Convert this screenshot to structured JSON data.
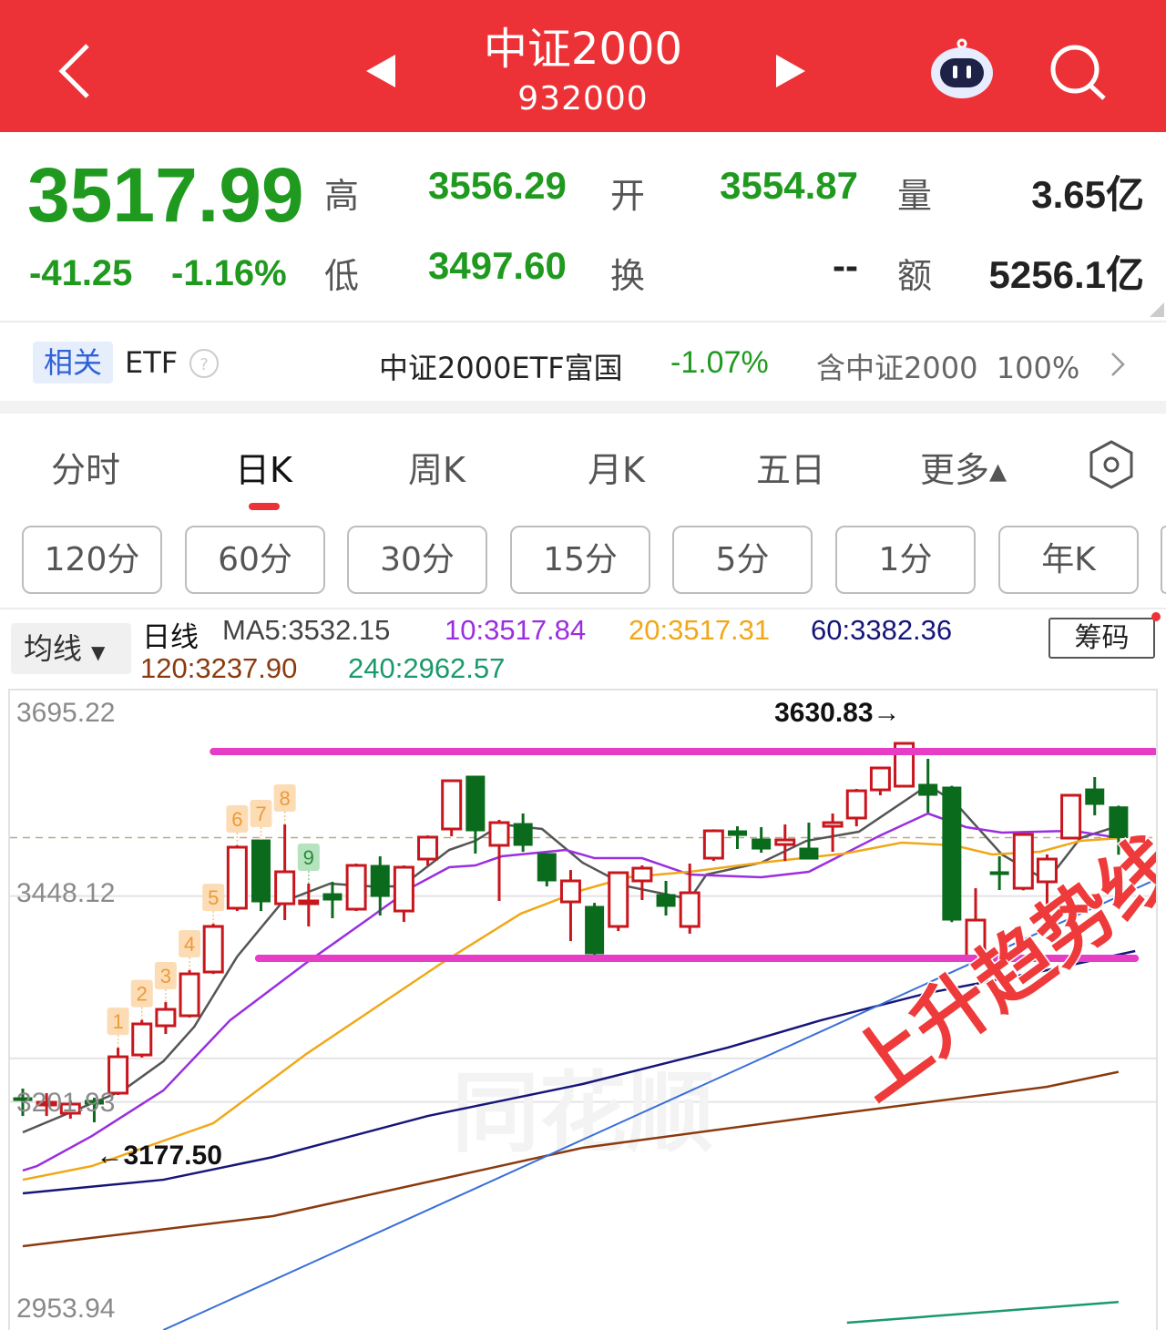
{
  "header": {
    "title": "中证2000",
    "code": "932000",
    "icons": [
      "back-chevron-icon",
      "prev-triangle-icon",
      "next-triangle-icon",
      "robot-assistant-icon",
      "search-icon"
    ]
  },
  "quote": {
    "price": "3517.99",
    "change": "-41.25",
    "change_pct": "-1.16%",
    "high_label": "高",
    "high": "3556.29",
    "low_label": "低",
    "low": "3497.60",
    "open_label": "开",
    "open": "3554.87",
    "turnover_label": "换",
    "turnover": "--",
    "volume_label": "量",
    "volume": "3.65亿",
    "amount_label": "额",
    "amount": "5256.1亿",
    "colors": {
      "down": "#1f9a1f",
      "header": "#ec3237"
    }
  },
  "etf": {
    "tag": "相关",
    "label": "ETF",
    "help_icon": "question-circle-icon",
    "name": "中证2000ETF富国",
    "change": "-1.07%",
    "holding": "含中证2000  100%",
    "chevron_icon": "chevron-right-icon"
  },
  "tabs": [
    {
      "label": "分时"
    },
    {
      "label": "日K",
      "active": true
    },
    {
      "label": "周K"
    },
    {
      "label": "月K"
    },
    {
      "label": "五日"
    },
    {
      "label": "更多▴"
    }
  ],
  "settings_icon": "hexagon-settings-icon",
  "periods": [
    "120分",
    "60分",
    "30分",
    "15分",
    "5分",
    "1分",
    "年K"
  ],
  "ma_legend": {
    "selector": "均线",
    "line_type": "日线",
    "ma5": "MA5:3532.15",
    "ma10": "10:3517.84",
    "ma20": "20:3517.31",
    "ma60": "60:3382.36",
    "ma120": "120:3237.90",
    "ma240": "240:2962.57",
    "chips_button": "筹码"
  },
  "chart_data": {
    "type": "candlestick",
    "y_tick_labels": [
      "3695.22",
      "3448.12",
      "3201.93",
      "2953.94"
    ],
    "y_ticks": [
      3695.22,
      3448.12,
      3201.93,
      2953.94
    ],
    "grid_extra": [
      3254
    ],
    "current_price": 3517.99,
    "max_label": "3630.83→",
    "max_value": 3630.83,
    "max_index": 37,
    "min_label": "←3177.50",
    "min_value": 3177.5,
    "min_index": 3,
    "up_color": "#c8161d",
    "down_color": "#0b6b1c",
    "candles": [
      [
        3206.9,
        3217.8,
        3185.1,
        3203.6
      ],
      [
        3199.3,
        3212.4,
        3185.1,
        3201.5
      ],
      [
        3188.4,
        3203.6,
        3181.8,
        3199.3
      ],
      [
        3203.6,
        3206.9,
        3177.5,
        3199.3
      ],
      [
        3212.4,
        3266.8,
        3210.2,
        3255.9
      ],
      [
        3258.1,
        3300.0,
        3255.0,
        3295.2
      ],
      [
        3293.0,
        3321.3,
        3283.2,
        3312.6
      ],
      [
        3305.0,
        3359.5,
        3302.8,
        3355.1
      ],
      [
        3357.3,
        3415.0,
        3355.0,
        3411.8
      ],
      [
        3433.6,
        3508.8,
        3430.3,
        3506.6
      ],
      [
        3515.3,
        3515.3,
        3430.3,
        3441.2
      ],
      [
        3439.0,
        3533.8,
        3419.4,
        3477.2
      ],
      [
        3440.1,
        3463.0,
        3411.8,
        3442.3
      ],
      [
        3451.0,
        3465.2,
        3421.6,
        3443.4
      ],
      [
        3432.5,
        3487.0,
        3430.3,
        3484.8
      ],
      [
        3484.8,
        3495.7,
        3424.9,
        3447.7
      ],
      [
        3430.3,
        3484.8,
        3417.2,
        3482.6
      ],
      [
        3492.4,
        3520.7,
        3484.8,
        3518.6
      ],
      [
        3528.4,
        3586.1,
        3519.7,
        3586.1
      ],
      [
        3591.6,
        3591.6,
        3499.0,
        3526.2
      ],
      [
        3508.8,
        3539.3,
        3442.3,
        3536.0
      ],
      [
        3534.9,
        3546.9,
        3501.1,
        3508.8
      ],
      [
        3499.0,
        3499.0,
        3459.7,
        3466.3
      ],
      [
        3441.2,
        3479.3,
        3394.3,
        3466.3
      ],
      [
        3435.8,
        3440.0,
        3375.8,
        3379.1
      ],
      [
        3411.8,
        3476.1,
        3406.3,
        3476.1
      ],
      [
        3466.3,
        3484.8,
        3443.4,
        3481.5
      ],
      [
        3449.9,
        3466.3,
        3424.9,
        3435.8
      ],
      [
        3411.8,
        3487.0,
        3403.1,
        3452.1
      ],
      [
        3493.5,
        3528.0,
        3490.2,
        3526.2
      ],
      [
        3526.2,
        3531.6,
        3504.4,
        3520.7
      ],
      [
        3516.4,
        3530.6,
        3500.0,
        3504.4
      ],
      [
        3509.8,
        3533.8,
        3490.2,
        3515.3
      ],
      [
        3505.5,
        3536.0,
        3492.4,
        3492.4
      ],
      [
        3531.6,
        3546.9,
        3501.1,
        3536.0
      ],
      [
        3541.5,
        3576.3,
        3531.6,
        3574.1
      ],
      [
        3575.2,
        3603.0,
        3568.7,
        3601.4
      ],
      [
        3579.6,
        3630.83,
        3578.0,
        3630.8
      ],
      [
        3581.8,
        3612.3,
        3548.0,
        3568.7
      ],
      [
        3578.5,
        3580.0,
        3417.0,
        3419.4
      ],
      [
        3375.8,
        3457.5,
        3373.6,
        3419.4
      ],
      [
        3477.2,
        3495.7,
        3455.4,
        3473.9
      ],
      [
        3457.5,
        3523.0,
        3455.0,
        3521.8
      ],
      [
        3465.2,
        3497.9,
        3410.7,
        3492.4
      ],
      [
        3517.5,
        3570.0,
        3516.0,
        3568.7
      ],
      [
        3576.3,
        3590.5,
        3544.7,
        3557.8
      ],
      [
        3554.87,
        3556.29,
        3497.6,
        3517.99
      ]
    ],
    "td_sequence": [
      {
        "index": 4,
        "label": "1"
      },
      {
        "index": 5,
        "label": "2"
      },
      {
        "index": 6,
        "label": "3"
      },
      {
        "index": 7,
        "label": "4"
      },
      {
        "index": 8,
        "label": "5"
      },
      {
        "index": 9,
        "label": "6"
      },
      {
        "index": 10,
        "label": "7"
      },
      {
        "index": 11,
        "label": "8"
      },
      {
        "index": 12,
        "label": "9",
        "type": "sell"
      }
    ],
    "moving_averages": [
      {
        "name": "MA5",
        "color": "#555555",
        "points": [
          [
            0,
            3165.5
          ],
          [
            4.2,
            3215.6
          ],
          [
            5.9,
            3250.5
          ],
          [
            7.2,
            3291.9
          ],
          [
            9,
            3375.8
          ],
          [
            10.9,
            3441.2
          ],
          [
            12.9,
            3463.0
          ],
          [
            14.6,
            3459.7
          ],
          [
            15.9,
            3459.7
          ],
          [
            17.9,
            3503.3
          ],
          [
            19,
            3514.2
          ],
          [
            20.1,
            3533.8
          ],
          [
            21.8,
            3528.4
          ],
          [
            23.5,
            3488.1
          ],
          [
            25.4,
            3459.7
          ],
          [
            28,
            3444.5
          ],
          [
            28.7,
            3473.9
          ],
          [
            31,
            3488.1
          ],
          [
            32.9,
            3514.2
          ],
          [
            35.1,
            3525.1
          ],
          [
            38,
            3580.7
          ],
          [
            39.1,
            3561.1
          ],
          [
            41.1,
            3497.9
          ],
          [
            43,
            3466.3
          ],
          [
            44.4,
            3517.5
          ],
          [
            46,
            3532.15
          ]
        ]
      },
      {
        "name": "MA10",
        "color": "#9a2ee0",
        "points": [
          [
            0,
            3119.8
          ],
          [
            0.6,
            3125.2
          ],
          [
            2.9,
            3161.1
          ],
          [
            5.9,
            3215.6
          ],
          [
            8.7,
            3299.5
          ],
          [
            11.9,
            3368.2
          ],
          [
            14.6,
            3422.7
          ],
          [
            16.4,
            3459.7
          ],
          [
            17.9,
            3482.6
          ],
          [
            19,
            3484.8
          ],
          [
            20.1,
            3495.7
          ],
          [
            22.8,
            3503.3
          ],
          [
            24,
            3493.5
          ],
          [
            26,
            3493.5
          ],
          [
            28,
            3473.9
          ],
          [
            31,
            3470.6
          ],
          [
            33,
            3477.2
          ],
          [
            36,
            3520.7
          ],
          [
            38,
            3546.9
          ],
          [
            39.6,
            3530.6
          ],
          [
            41.1,
            3524.0
          ],
          [
            44.1,
            3526.2
          ],
          [
            46,
            3517.84
          ]
        ]
      },
      {
        "name": "MA20",
        "color": "#f0a818",
        "points": [
          [
            0,
            3108.8
          ],
          [
            2.9,
            3125.2
          ],
          [
            8,
            3176.4
          ],
          [
            11.9,
            3259.2
          ],
          [
            17.6,
            3368.2
          ],
          [
            20.9,
            3427.0
          ],
          [
            23.5,
            3455.4
          ],
          [
            25.4,
            3470.6
          ],
          [
            28,
            3477.2
          ],
          [
            31,
            3488.1
          ],
          [
            34.5,
            3499.0
          ],
          [
            36.9,
            3512.0
          ],
          [
            39.1,
            3508.8
          ],
          [
            40.7,
            3497.9
          ],
          [
            42.7,
            3501.1
          ],
          [
            44.4,
            3514.2
          ],
          [
            46,
            3517.31
          ]
        ]
      },
      {
        "name": "MA60",
        "color": "#16167a",
        "points": [
          [
            0,
            3092.5
          ],
          [
            5.9,
            3108.8
          ],
          [
            10.5,
            3136.0
          ],
          [
            17,
            3185.1
          ],
          [
            23.5,
            3223.3
          ],
          [
            29.6,
            3266.9
          ],
          [
            33.5,
            3299.5
          ],
          [
            38,
            3332.2
          ],
          [
            43,
            3359.5
          ],
          [
            46.7,
            3382.36
          ]
        ]
      },
      {
        "name": "MA120",
        "color": "#8b3a0f",
        "points": [
          [
            0,
            3029.3
          ],
          [
            10.5,
            3065.3
          ],
          [
            23.5,
            3147.0
          ],
          [
            33.5,
            3185.1
          ],
          [
            43,
            3220.0
          ],
          [
            46,
            3237.9
          ]
        ]
      },
      {
        "name": "MA240",
        "color": "#1a9a6a",
        "points": [
          [
            34.6,
            2937.8
          ],
          [
            46,
            2962.57
          ]
        ]
      }
    ],
    "annotations": {
      "resistance": {
        "value": 3621.0,
        "from": 8,
        "to": 47.5,
        "color": "#e63cc6"
      },
      "support": {
        "value": 3373.6,
        "from": 9.9,
        "to": 46.7,
        "color": "#e63cc6"
      },
      "trendline": {
        "from": [
          5.9,
          2929.0
        ],
        "to": [
          47.6,
          3468.4
        ],
        "color": "#3a6fd8"
      },
      "trend_text": "上升趋势线",
      "trend_text_color": "#ee3a3a"
    },
    "watermark": "同花顺"
  }
}
